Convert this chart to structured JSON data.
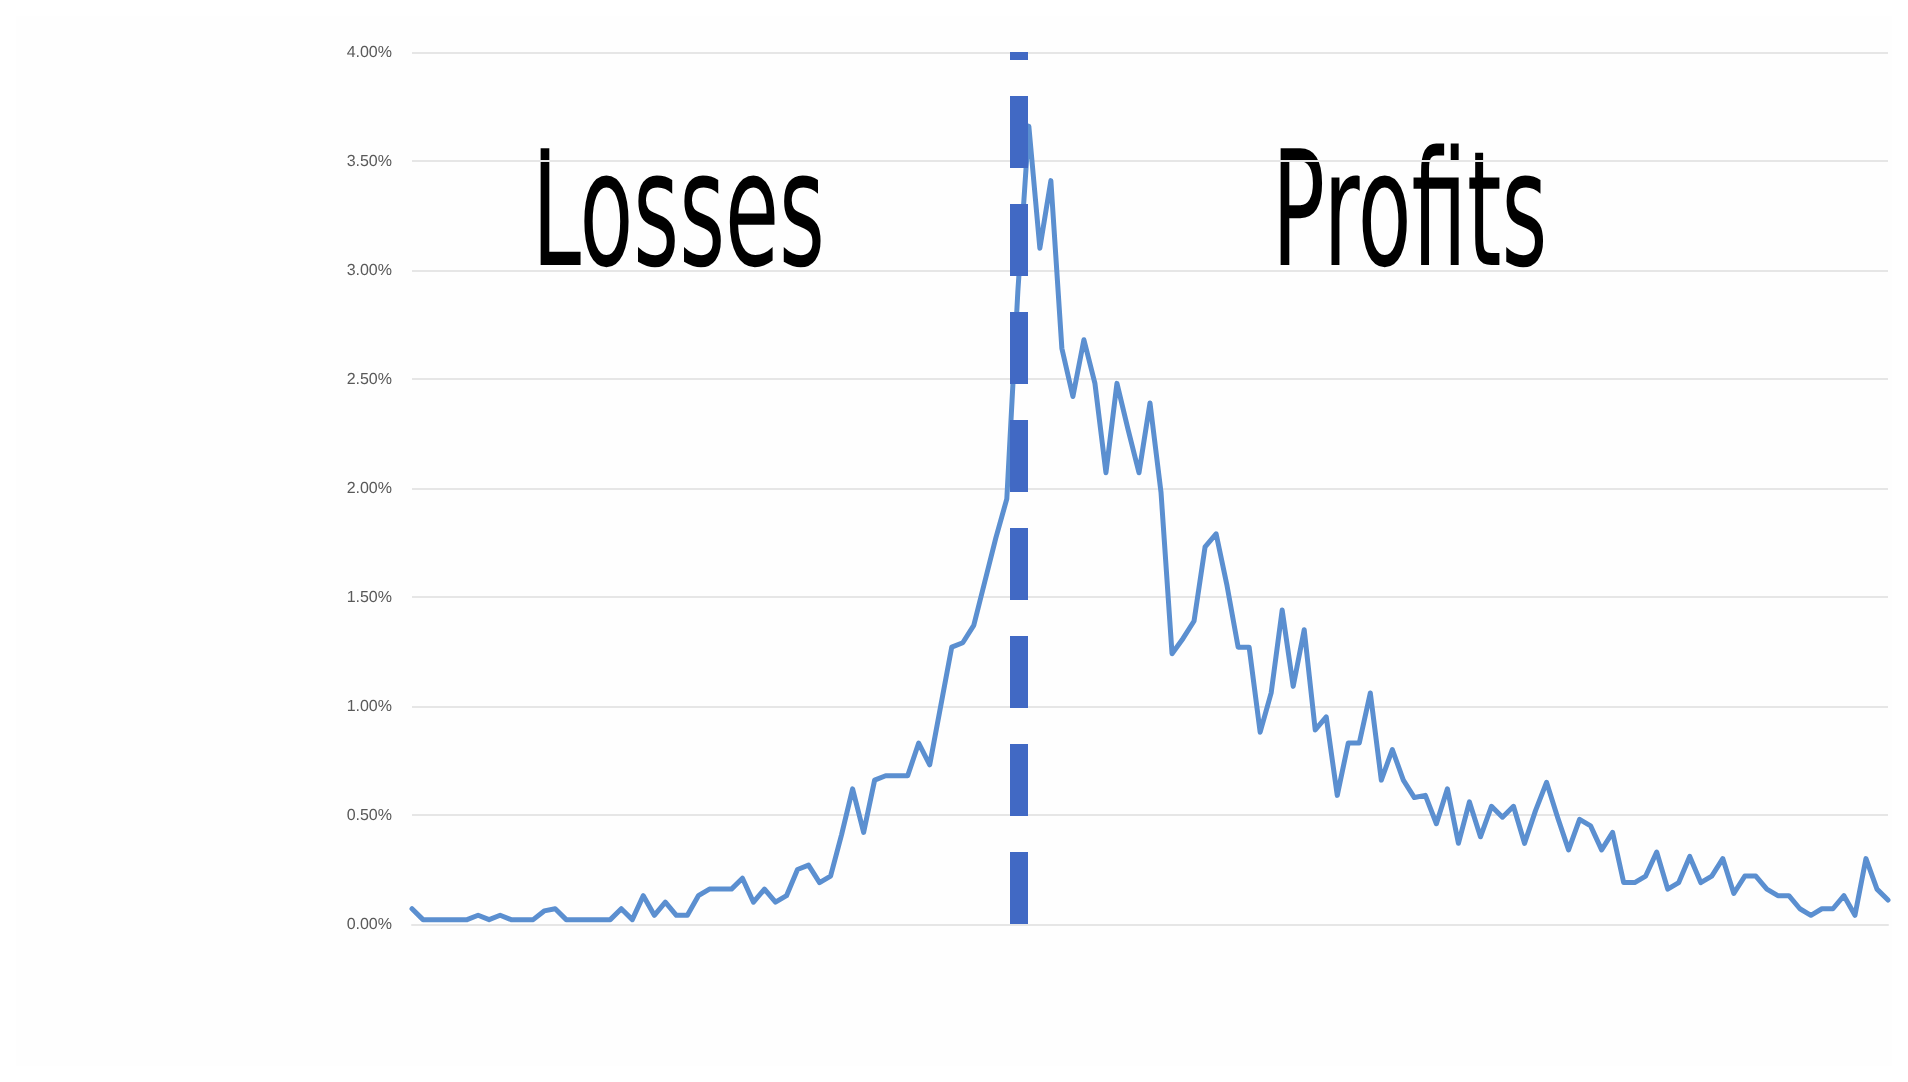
{
  "chart_data": {
    "type": "line",
    "categories": [
      null,
      null,
      null,
      null,
      null,
      null,
      null,
      null,
      null,
      null,
      null,
      null,
      null,
      null,
      null,
      null,
      null,
      null,
      null,
      null,
      null,
      null,
      null,
      null,
      null,
      null,
      null,
      null,
      null,
      null,
      null,
      null,
      null,
      null,
      null,
      null,
      null,
      null,
      null,
      null,
      null,
      null,
      null,
      null,
      null,
      null,
      null,
      null,
      null,
      null,
      null,
      null,
      null,
      null,
      null,
      null,
      null,
      null,
      null,
      null,
      null,
      null,
      null,
      null,
      null,
      null,
      null,
      null,
      null,
      null,
      null,
      null,
      null,
      null,
      null,
      null,
      null,
      null,
      null,
      null,
      null,
      null,
      null,
      null,
      null,
      null,
      null,
      null,
      null,
      null,
      null,
      null,
      null,
      null,
      null,
      null,
      null,
      null,
      null,
      null,
      null,
      null,
      null,
      null,
      null,
      null,
      null,
      null,
      null,
      null,
      null,
      null,
      null,
      null,
      null,
      null,
      null,
      null,
      null,
      null,
      null,
      null,
      null,
      null,
      null,
      null,
      null,
      null,
      null,
      null,
      null,
      null,
      null,
      null,
      null
    ],
    "series": [
      {
        "color": "#5b8fd0",
        "values": [
          0.07,
          0.02,
          0.02,
          0.02,
          0.02,
          0.02,
          0.04,
          0.02,
          0.04,
          0.02,
          0.02,
          0.02,
          0.06,
          0.07,
          0.02,
          0.02,
          0.02,
          0.02,
          0.02,
          0.07,
          0.02,
          0.13,
          0.04,
          0.1,
          0.04,
          0.04,
          0.13,
          0.16,
          0.16,
          0.16,
          0.21,
          0.1,
          0.16,
          0.1,
          0.13,
          0.25,
          0.27,
          0.19,
          0.22,
          0.41,
          0.62,
          0.42,
          0.66,
          0.68,
          0.68,
          0.68,
          0.83,
          0.73,
          1.0,
          1.27,
          1.29,
          1.37,
          1.57,
          1.77,
          1.95,
          2.9,
          3.66,
          3.1,
          3.41,
          2.64,
          2.42,
          2.68,
          2.48,
          2.07,
          2.48,
          2.27,
          2.07,
          2.39,
          1.98,
          1.24,
          1.31,
          1.39,
          1.73,
          1.79,
          1.55,
          1.27,
          1.27,
          0.88,
          1.06,
          1.44,
          1.09,
          1.35,
          0.89,
          0.95,
          0.59,
          0.83,
          0.83,
          1.06,
          0.66,
          0.8,
          0.66,
          0.58,
          0.59,
          0.46,
          0.62,
          0.37,
          0.56,
          0.4,
          0.54,
          0.49,
          0.54,
          0.37,
          0.52,
          0.65,
          0.49,
          0.34,
          0.48,
          0.45,
          0.34,
          0.42,
          0.19,
          0.19,
          0.22,
          0.33,
          0.16,
          0.19,
          0.31,
          0.19,
          0.22,
          0.3,
          0.14,
          0.22,
          0.22,
          0.16,
          0.13,
          0.13,
          0.07,
          0.04,
          0.07,
          0.07,
          0.13,
          0.04,
          0.3,
          0.16,
          0.11
        ]
      }
    ],
    "ylim": [
      0,
      4
    ],
    "yticks": [
      {
        "value": 0,
        "label": "0.00%"
      },
      {
        "value": 0.5,
        "label": "0.50%"
      },
      {
        "value": 1,
        "label": "1.00%"
      },
      {
        "value": 1.5,
        "label": "1.50%"
      },
      {
        "value": 2,
        "label": "2.00%"
      },
      {
        "value": 2.5,
        "label": "2.50%"
      },
      {
        "value": 3,
        "label": "3.00%"
      },
      {
        "value": 3.5,
        "label": "3.50%"
      },
      {
        "value": 4,
        "label": "4.00%"
      }
    ],
    "grid": "y",
    "line_style": "solid",
    "tick_labels": "y",
    "annotations": [
      "Losses",
      "Profits"
    ]
  }
}
